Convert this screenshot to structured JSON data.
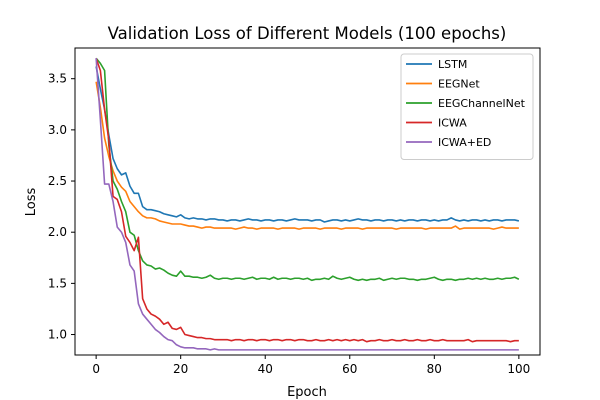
{
  "chart_data": {
    "type": "line",
    "title": "Validation Loss of Different Models (100 epochs)",
    "xlabel": "Epoch",
    "ylabel": "Loss",
    "xlim": [
      -5,
      105
    ],
    "ylim": [
      0.8,
      3.8
    ],
    "xticks": [
      0,
      20,
      40,
      60,
      80,
      100
    ],
    "yticks": [
      1.0,
      1.5,
      2.0,
      2.5,
      3.0,
      3.5
    ],
    "xtick_labels": [
      "0",
      "20",
      "40",
      "60",
      "80",
      "100"
    ],
    "ytick_labels": [
      "1.0",
      "1.5",
      "2.0",
      "2.5",
      "3.0",
      "3.5"
    ],
    "grid": false,
    "legend_position": "top-right",
    "series": [
      {
        "name": "LSTM",
        "color": "#1f77b4",
        "values": [
          3.62,
          3.4,
          3.2,
          2.95,
          2.72,
          2.62,
          2.56,
          2.58,
          2.45,
          2.38,
          2.38,
          2.25,
          2.22,
          2.22,
          2.21,
          2.2,
          2.18,
          2.17,
          2.16,
          2.15,
          2.17,
          2.14,
          2.13,
          2.14,
          2.13,
          2.13,
          2.12,
          2.13,
          2.13,
          2.12,
          2.12,
          2.11,
          2.12,
          2.12,
          2.11,
          2.12,
          2.13,
          2.12,
          2.12,
          2.11,
          2.12,
          2.12,
          2.11,
          2.12,
          2.12,
          2.11,
          2.12,
          2.13,
          2.12,
          2.12,
          2.12,
          2.11,
          2.12,
          2.12,
          2.1,
          2.11,
          2.12,
          2.12,
          2.11,
          2.12,
          2.11,
          2.12,
          2.13,
          2.12,
          2.12,
          2.11,
          2.12,
          2.12,
          2.11,
          2.12,
          2.12,
          2.11,
          2.12,
          2.11,
          2.12,
          2.12,
          2.11,
          2.12,
          2.12,
          2.11,
          2.12,
          2.11,
          2.12,
          2.12,
          2.14,
          2.12,
          2.11,
          2.12,
          2.11,
          2.12,
          2.12,
          2.11,
          2.12,
          2.11,
          2.12,
          2.12,
          2.11,
          2.12,
          2.12,
          2.12,
          2.11
        ]
      },
      {
        "name": "EEGNet",
        "color": "#ff7f0e",
        "values": [
          3.47,
          3.22,
          2.92,
          2.74,
          2.6,
          2.5,
          2.44,
          2.4,
          2.3,
          2.25,
          2.2,
          2.16,
          2.14,
          2.14,
          2.13,
          2.11,
          2.1,
          2.09,
          2.08,
          2.08,
          2.08,
          2.07,
          2.06,
          2.06,
          2.05,
          2.04,
          2.05,
          2.05,
          2.04,
          2.04,
          2.04,
          2.04,
          2.04,
          2.03,
          2.04,
          2.05,
          2.04,
          2.04,
          2.03,
          2.04,
          2.04,
          2.04,
          2.04,
          2.03,
          2.04,
          2.04,
          2.04,
          2.04,
          2.03,
          2.04,
          2.04,
          2.04,
          2.04,
          2.03,
          2.04,
          2.04,
          2.04,
          2.04,
          2.03,
          2.04,
          2.04,
          2.04,
          2.04,
          2.03,
          2.04,
          2.04,
          2.04,
          2.04,
          2.04,
          2.04,
          2.04,
          2.03,
          2.04,
          2.04,
          2.04,
          2.04,
          2.04,
          2.04,
          2.03,
          2.04,
          2.04,
          2.04,
          2.04,
          2.04,
          2.04,
          2.06,
          2.03,
          2.04,
          2.04,
          2.04,
          2.04,
          2.04,
          2.04,
          2.04,
          2.03,
          2.04,
          2.05,
          2.04,
          2.04,
          2.04,
          2.04
        ]
      },
      {
        "name": "EEGChannelNet",
        "color": "#2ca02c",
        "values": [
          3.7,
          3.65,
          3.58,
          2.85,
          2.5,
          2.42,
          2.3,
          2.2,
          2.0,
          1.97,
          1.82,
          1.72,
          1.68,
          1.67,
          1.64,
          1.65,
          1.63,
          1.6,
          1.58,
          1.57,
          1.62,
          1.57,
          1.57,
          1.56,
          1.56,
          1.55,
          1.56,
          1.58,
          1.55,
          1.54,
          1.55,
          1.55,
          1.54,
          1.55,
          1.55,
          1.54,
          1.55,
          1.56,
          1.54,
          1.55,
          1.55,
          1.54,
          1.56,
          1.54,
          1.55,
          1.55,
          1.54,
          1.55,
          1.55,
          1.54,
          1.55,
          1.53,
          1.54,
          1.54,
          1.55,
          1.54,
          1.57,
          1.55,
          1.54,
          1.55,
          1.56,
          1.54,
          1.53,
          1.54,
          1.53,
          1.54,
          1.54,
          1.55,
          1.53,
          1.54,
          1.55,
          1.54,
          1.55,
          1.55,
          1.54,
          1.54,
          1.53,
          1.54,
          1.54,
          1.55,
          1.56,
          1.54,
          1.53,
          1.54,
          1.54,
          1.53,
          1.54,
          1.54,
          1.55,
          1.54,
          1.55,
          1.54,
          1.55,
          1.54,
          1.54,
          1.55,
          1.54,
          1.55,
          1.55,
          1.56,
          1.54
        ]
      },
      {
        "name": "ICWA",
        "color": "#d62728",
        "values": [
          3.7,
          3.58,
          3.2,
          2.9,
          2.35,
          2.32,
          2.2,
          1.96,
          1.9,
          1.82,
          1.95,
          1.35,
          1.25,
          1.2,
          1.18,
          1.15,
          1.1,
          1.12,
          1.06,
          1.05,
          1.07,
          1.0,
          0.99,
          0.98,
          0.97,
          0.97,
          0.96,
          0.96,
          0.95,
          0.95,
          0.95,
          0.95,
          0.94,
          0.95,
          0.95,
          0.94,
          0.95,
          0.95,
          0.94,
          0.95,
          0.95,
          0.94,
          0.95,
          0.95,
          0.94,
          0.95,
          0.95,
          0.94,
          0.95,
          0.95,
          0.94,
          0.94,
          0.95,
          0.94,
          0.94,
          0.95,
          0.94,
          0.95,
          0.94,
          0.95,
          0.94,
          0.95,
          0.94,
          0.95,
          0.93,
          0.94,
          0.94,
          0.95,
          0.94,
          0.94,
          0.95,
          0.94,
          0.94,
          0.95,
          0.94,
          0.94,
          0.95,
          0.94,
          0.94,
          0.95,
          0.94,
          0.94,
          0.95,
          0.94,
          0.94,
          0.94,
          0.94,
          0.94,
          0.95,
          0.93,
          0.94,
          0.94,
          0.94,
          0.94,
          0.94,
          0.94,
          0.94,
          0.94,
          0.93,
          0.94,
          0.94
        ]
      },
      {
        "name": "ICWA+ED",
        "color": "#9467bd",
        "values": [
          3.7,
          3.1,
          2.47,
          2.47,
          2.3,
          2.05,
          2.0,
          1.9,
          1.68,
          1.62,
          1.3,
          1.2,
          1.15,
          1.1,
          1.05,
          1.02,
          0.98,
          0.95,
          0.94,
          0.9,
          0.88,
          0.87,
          0.87,
          0.87,
          0.86,
          0.86,
          0.86,
          0.85,
          0.86,
          0.85,
          0.85,
          0.85,
          0.85,
          0.85,
          0.85,
          0.85,
          0.85,
          0.85,
          0.85,
          0.85,
          0.85,
          0.85,
          0.85,
          0.85,
          0.85,
          0.85,
          0.85,
          0.85,
          0.85,
          0.85,
          0.85,
          0.85,
          0.85,
          0.85,
          0.85,
          0.85,
          0.85,
          0.85,
          0.85,
          0.85,
          0.85,
          0.85,
          0.85,
          0.85,
          0.85,
          0.85,
          0.85,
          0.85,
          0.85,
          0.85,
          0.85,
          0.85,
          0.85,
          0.85,
          0.85,
          0.85,
          0.85,
          0.85,
          0.85,
          0.85,
          0.85,
          0.85,
          0.85,
          0.85,
          0.85,
          0.85,
          0.85,
          0.85,
          0.85,
          0.85,
          0.85,
          0.85,
          0.85,
          0.85,
          0.85,
          0.85,
          0.85,
          0.85,
          0.85,
          0.85,
          0.85
        ]
      }
    ]
  }
}
